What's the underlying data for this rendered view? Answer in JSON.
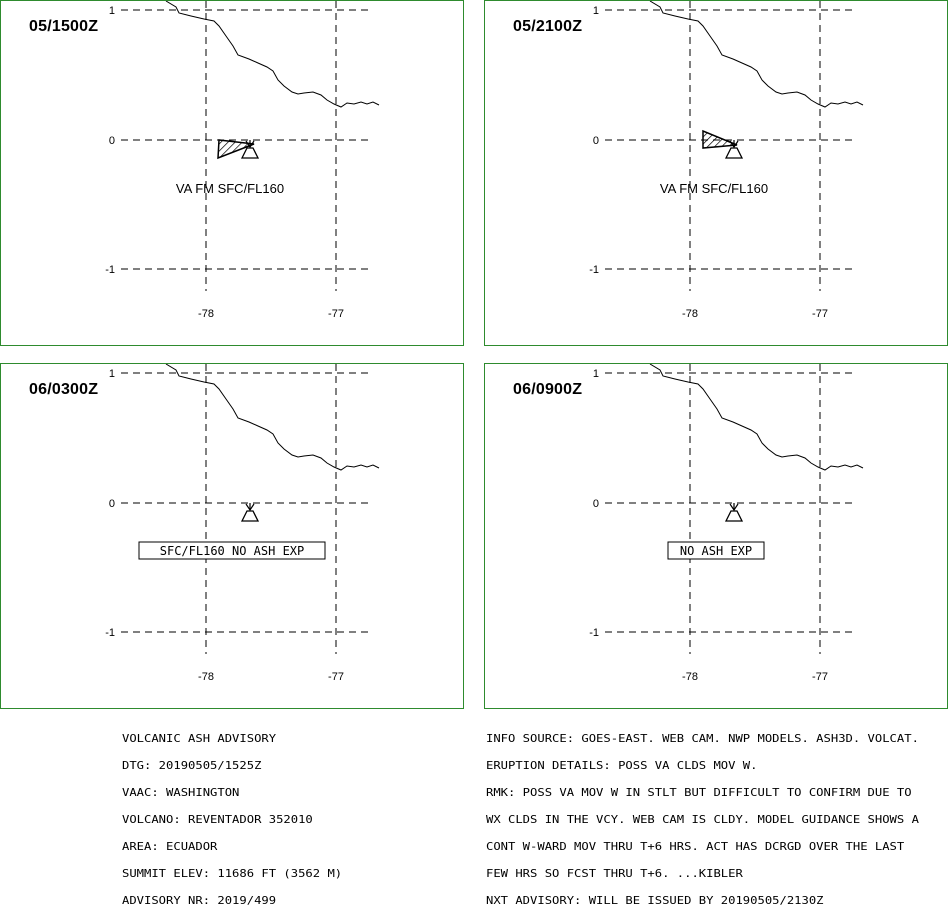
{
  "panels": [
    {
      "time": "05/1500Z",
      "label": "VA FM SFC/FL160",
      "label_style": "plain",
      "ash": "05/1500Z"
    },
    {
      "time": "05/2100Z",
      "label": "VA FM SFC/FL160",
      "label_style": "plain",
      "ash": "05/2100Z"
    },
    {
      "time": "06/0300Z",
      "label": "SFC/FL160 NO ASH EXP",
      "label_style": "boxed",
      "ash": null
    },
    {
      "time": "06/0900Z",
      "label": "NO ASH EXP",
      "label_style": "boxed",
      "ash": null
    }
  ],
  "axis": {
    "lat_ticks": [
      "1",
      "0",
      "-1"
    ],
    "lon_ticks": [
      "-78",
      "-77"
    ]
  },
  "advisory_left": [
    "VOLCANIC ASH ADVISORY",
    "DTG: 20190505/1525Z",
    "VAAC: WASHINGTON",
    "VOLCANO: REVENTADOR 352010",
    "AREA: ECUADOR",
    "SUMMIT ELEV: 11686 FT (3562 M)",
    "ADVISORY NR: 2019/499"
  ],
  "advisory_right": [
    "INFO SOURCE: GOES-EAST. WEB CAM. NWP MODELS. ASH3D. VOLCAT.",
    "ERUPTION DETAILS: POSS VA CLDS MOV W.",
    "RMK: POSS VA MOV W IN STLT BUT DIFFICULT TO CONFIRM DUE TO",
    "WX CLDS IN THE VCY. WEB CAM IS CLDY. MODEL GUIDANCE SHOWS A",
    "CONT W-WARD MOV THRU T+6 HRS. ACT HAS DCRGD OVER THE LAST",
    "FEW HRS SO FCST THRU T+6. ...KIBLER",
    "NXT ADVISORY: WILL BE ISSUED BY 20190505/2130Z"
  ],
  "colors": {
    "panel_border": "#2e8b2e",
    "lines": "#000000",
    "background": "#ffffff"
  }
}
